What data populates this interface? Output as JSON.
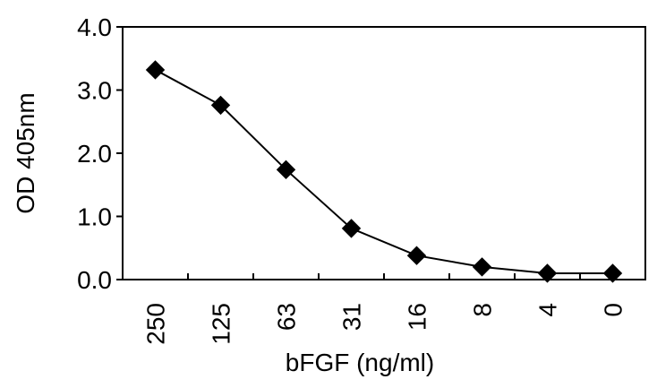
{
  "chart_data": {
    "type": "line",
    "title": "",
    "xlabel": "bFGF (ng/ml)",
    "ylabel": "OD 405nm",
    "categories": [
      "250",
      "125",
      "63",
      "31",
      "16",
      "8",
      "4",
      "0"
    ],
    "series": [
      {
        "values": [
          3.32,
          2.76,
          1.74,
          0.81,
          0.38,
          0.2,
          0.1,
          0.1
        ]
      }
    ],
    "ylim": [
      0,
      4.0
    ],
    "yticks": [
      "0.0",
      "1.0",
      "2.0",
      "3.0",
      "4.0"
    ],
    "grid": false,
    "legend": "none",
    "marker": "diamond",
    "colors": {
      "line": "#000000",
      "marker": "#000000"
    }
  }
}
